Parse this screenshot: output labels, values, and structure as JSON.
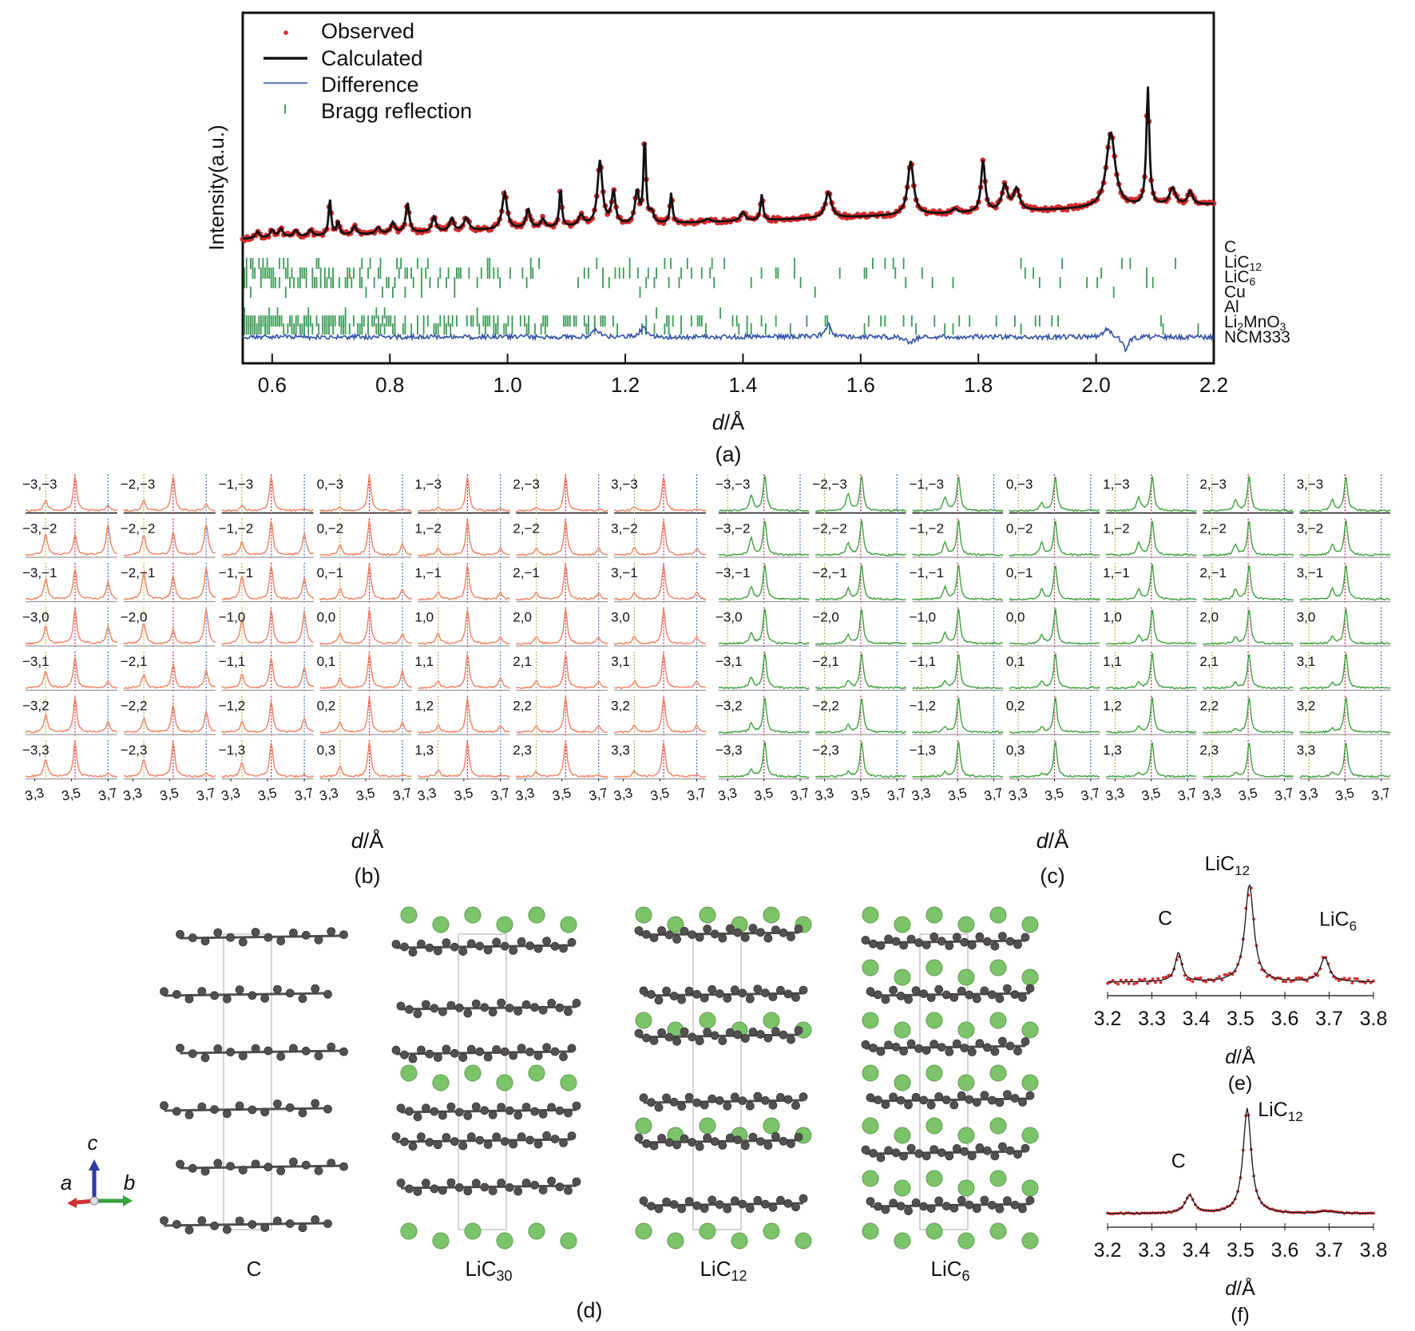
{
  "colors": {
    "observed": "#d42a2a",
    "calculated": "#111111",
    "difference": "#3050a8",
    "bragg": "#3a9a55",
    "panel_b_line": "#f08060",
    "panel_c_line": "#3fa03c",
    "guide_left": "#b8b040",
    "guide_mid": "#c02050",
    "guide_right": "#3a70c8",
    "carbon": "#555050",
    "lithium": "#7cc46a"
  },
  "chart_data": [
    {
      "id": "a",
      "type": "line",
      "panel_label": "(a)",
      "xlabel_italic": "d",
      "xlabel_rest": "/Å",
      "ylabel": "Intensity(a.u.)",
      "xlim": [
        0.55,
        2.2
      ],
      "xticks": [
        0.6,
        0.8,
        1.0,
        1.2,
        1.4,
        1.6,
        1.8,
        2.0,
        2.2
      ],
      "xtick_labels": [
        "0.6",
        "0.8",
        "1.0",
        "1.2",
        "1.4",
        "1.6",
        "1.8",
        "2.0",
        "2.2"
      ],
      "ylim": [
        0,
        1
      ],
      "legend": {
        "position": "top-left",
        "entries": [
          {
            "label": "Observed",
            "marker": "dot",
            "color_key": "observed"
          },
          {
            "label": "Calculated",
            "marker": "thick-line",
            "color_key": "calculated"
          },
          {
            "label": "Difference",
            "marker": "thin-line",
            "color_key": "difference"
          },
          {
            "label": "Bragg reflection",
            "marker": "tick",
            "color_key": "bragg"
          }
        ]
      },
      "baseline": {
        "start": 0.42,
        "end": 0.58
      },
      "peaks": [
        {
          "d": 0.575,
          "h": 0.03,
          "w": 0.004
        },
        {
          "d": 0.6,
          "h": 0.035,
          "w": 0.004
        },
        {
          "d": 0.615,
          "h": 0.04,
          "w": 0.004
        },
        {
          "d": 0.64,
          "h": 0.03,
          "w": 0.004
        },
        {
          "d": 0.665,
          "h": 0.03,
          "w": 0.004
        },
        {
          "d": 0.698,
          "h": 0.17,
          "w": 0.0025
        },
        {
          "d": 0.712,
          "h": 0.06,
          "w": 0.003
        },
        {
          "d": 0.74,
          "h": 0.04,
          "w": 0.004
        },
        {
          "d": 0.78,
          "h": 0.03,
          "w": 0.004
        },
        {
          "d": 0.805,
          "h": 0.05,
          "w": 0.004
        },
        {
          "d": 0.83,
          "h": 0.14,
          "w": 0.0035
        },
        {
          "d": 0.875,
          "h": 0.07,
          "w": 0.004
        },
        {
          "d": 0.905,
          "h": 0.06,
          "w": 0.004
        },
        {
          "d": 0.93,
          "h": 0.06,
          "w": 0.005
        },
        {
          "d": 0.995,
          "h": 0.17,
          "w": 0.005
        },
        {
          "d": 1.035,
          "h": 0.09,
          "w": 0.004
        },
        {
          "d": 1.06,
          "h": 0.04,
          "w": 0.004
        },
        {
          "d": 1.09,
          "h": 0.18,
          "w": 0.0025
        },
        {
          "d": 1.125,
          "h": 0.05,
          "w": 0.005
        },
        {
          "d": 1.157,
          "h": 0.3,
          "w": 0.005
        },
        {
          "d": 1.18,
          "h": 0.15,
          "w": 0.004
        },
        {
          "d": 1.22,
          "h": 0.15,
          "w": 0.004
        },
        {
          "d": 1.233,
          "h": 0.4,
          "w": 0.0025
        },
        {
          "d": 1.245,
          "h": 0.05,
          "w": 0.004
        },
        {
          "d": 1.278,
          "h": 0.14,
          "w": 0.0025
        },
        {
          "d": 1.34,
          "h": 0.015,
          "w": 0.006
        },
        {
          "d": 1.4,
          "h": 0.04,
          "w": 0.005
        },
        {
          "d": 1.432,
          "h": 0.12,
          "w": 0.0025
        },
        {
          "d": 1.545,
          "h": 0.12,
          "w": 0.006
        },
        {
          "d": 1.685,
          "h": 0.25,
          "w": 0.006
        },
        {
          "d": 1.76,
          "h": 0.02,
          "w": 0.005
        },
        {
          "d": 1.808,
          "h": 0.24,
          "w": 0.004
        },
        {
          "d": 1.845,
          "h": 0.12,
          "w": 0.006
        },
        {
          "d": 1.865,
          "h": 0.1,
          "w": 0.006
        },
        {
          "d": 2.025,
          "h": 0.35,
          "w": 0.009
        },
        {
          "d": 2.088,
          "h": 0.55,
          "w": 0.003
        },
        {
          "d": 2.13,
          "h": 0.08,
          "w": 0.006
        },
        {
          "d": 2.16,
          "h": 0.06,
          "w": 0.005
        }
      ],
      "bragg_phases": [
        "C",
        "LiC12",
        "LiC6",
        "Cu",
        "Al",
        "Li2MnO3",
        "NCM333"
      ],
      "phase_labels": [
        {
          "base": "C",
          "sub": ""
        },
        {
          "base": "LiC",
          "sub": "12"
        },
        {
          "base": "LiC",
          "sub": "6"
        },
        {
          "base": "Cu",
          "sub": ""
        },
        {
          "base": "Al",
          "sub": ""
        },
        {
          "base": "Li",
          "sub": "2",
          "mid": "MnO",
          "sub2": "3"
        },
        {
          "base": "NCM333",
          "sub": ""
        }
      ],
      "difference_features": [
        {
          "d": 1.15,
          "amp": -0.02
        },
        {
          "d": 1.23,
          "amp": -0.03
        },
        {
          "d": 1.545,
          "amp": -0.04
        },
        {
          "d": 1.685,
          "amp": 0.02
        },
        {
          "d": 2.02,
          "amp": -0.03
        },
        {
          "d": 2.05,
          "amp": 0.04
        }
      ]
    },
    {
      "id": "b",
      "type": "line",
      "panel_label": "(b)",
      "xlabel_italic": "d",
      "xlabel_rest": "/Å",
      "grid_rows": [
        -3,
        -2,
        -1,
        0,
        1,
        2,
        3
      ],
      "grid_cols": [
        -3,
        -2,
        -1,
        0,
        1,
        2,
        3
      ],
      "cell_labels": [
        [
          "−3,−3",
          "−2,−3",
          "−1,−3",
          "0,−3",
          "1,−3",
          "2,−3",
          "3,−3"
        ],
        [
          "−3,−2",
          "−2,−2",
          "−1,−2",
          "0,−2",
          "1,−2",
          "2,−2",
          "3,−2"
        ],
        [
          "−3,−1",
          "−2,−1",
          "−1,−1",
          "0,−1",
          "1,−1",
          "2,−1",
          "3,−1"
        ],
        [
          "−3,0",
          "−2,0",
          "−1,0",
          "0,0",
          "1,0",
          "2,0",
          "3,0"
        ],
        [
          "−3,1",
          "−2,1",
          "−1,1",
          "0,1",
          "1,1",
          "2,1",
          "3,1"
        ],
        [
          "−3,2",
          "−2,2",
          "−1,2",
          "0,2",
          "1,2",
          "2,2",
          "3,2"
        ],
        [
          "−3,3",
          "−2,3",
          "−1,3",
          "0,3",
          "1,3",
          "2,3",
          "3,3"
        ]
      ],
      "xlim": [
        3.25,
        3.75
      ],
      "xtick_labels": [
        "3,3",
        "3,5",
        "3,7"
      ],
      "xticks": [
        3.3,
        3.5,
        3.7
      ],
      "guide_lines_d": [
        3.36,
        3.52,
        3.7
      ],
      "peak_positions": {
        "C": 3.36,
        "LiC12": 3.52,
        "LiC6": 3.7
      },
      "peak_heights": {
        "C": [
          [
            0.3,
            0.3,
            0.15,
            0.1,
            0.1,
            0.1,
            0.1
          ],
          [
            0.6,
            0.6,
            0.4,
            0.3,
            0.2,
            0.2,
            0.2
          ],
          [
            0.6,
            0.8,
            0.7,
            0.3,
            0.2,
            0.2,
            0.2
          ],
          [
            0.5,
            0.6,
            0.7,
            0.3,
            0.3,
            0.2,
            0.2
          ],
          [
            0.5,
            0.4,
            0.4,
            0.3,
            0.2,
            0.2,
            0.2
          ],
          [
            0.5,
            0.4,
            0.3,
            0.3,
            0.2,
            0.2,
            0.2
          ],
          [
            0.5,
            0.5,
            0.4,
            0.3,
            0.2,
            0.15,
            0.15
          ]
        ],
        "LiC12": [
          [
            1,
            1,
            1,
            1,
            1,
            1,
            1
          ],
          [
            0.6,
            0.7,
            1,
            1,
            1,
            1,
            1
          ],
          [
            0.9,
            0.7,
            1,
            1,
            1,
            1,
            1
          ],
          [
            1,
            0.4,
            1,
            1,
            1,
            1,
            1
          ],
          [
            0.9,
            0.7,
            0.9,
            1,
            1,
            1,
            1
          ],
          [
            1,
            0.8,
            0.9,
            1,
            1,
            1,
            1
          ],
          [
            1,
            1,
            1,
            1,
            1,
            1,
            1
          ]
        ],
        "LiC6": [
          [
            0.15,
            0.2,
            0.05,
            0.05,
            0.05,
            0.05,
            0.05
          ],
          [
            0.9,
            0.9,
            0.6,
            0.3,
            0.2,
            0.2,
            0.2
          ],
          [
            0.5,
            0.9,
            0.6,
            0.3,
            0.2,
            0.2,
            0.2
          ],
          [
            0.5,
            1.0,
            0.9,
            0.3,
            0.2,
            0.2,
            0.2
          ],
          [
            0.2,
            0.5,
            0.6,
            0.5,
            0.3,
            0.2,
            0.2
          ],
          [
            0.3,
            0.6,
            0.4,
            0.3,
            0.2,
            0.2,
            0.2
          ],
          [
            0.1,
            0.1,
            0.05,
            0.05,
            0.05,
            0.05,
            0.05
          ]
        ]
      }
    },
    {
      "id": "c",
      "type": "line",
      "panel_label": "(c)",
      "xlabel_italic": "d",
      "xlabel_rest": "/Å",
      "xlim": [
        3.25,
        3.75
      ],
      "xtick_labels": [
        "3,3",
        "3,5",
        "3,7"
      ],
      "xticks": [
        3.3,
        3.5,
        3.7
      ],
      "guide_lines_d": [
        3.3,
        3.5,
        3.7
      ],
      "peak_positions": {
        "C": 3.43,
        "LiC12": 3.505,
        "LiC6": 3.7
      },
      "peak_heights": {
        "C": [
          [
            0.45,
            0.5,
            0.4,
            0.2,
            0.4,
            0.3,
            0.3
          ],
          [
            0.5,
            0.35,
            0.35,
            0.35,
            0.35,
            0.3,
            0.3
          ],
          [
            0.35,
            0.3,
            0.35,
            0.3,
            0.3,
            0.3,
            0.3
          ],
          [
            0.3,
            0.25,
            0.3,
            0.25,
            0.25,
            0.2,
            0.2
          ],
          [
            0.3,
            0.2,
            0.2,
            0.2,
            0.15,
            0.15,
            0.15
          ],
          [
            0.25,
            0.2,
            0.15,
            0.15,
            0.15,
            0.1,
            0.1
          ],
          [
            0.2,
            0.15,
            0.12,
            0.1,
            0.1,
            0.1,
            0.1
          ]
        ],
        "LiC12": [
          [
            1,
            1,
            1,
            1,
            1,
            1,
            1
          ],
          [
            1,
            1,
            1,
            1,
            1,
            1,
            1
          ],
          [
            1,
            1,
            1,
            1,
            1,
            1,
            1
          ],
          [
            1,
            1,
            1,
            1,
            1,
            1,
            1
          ],
          [
            1,
            1,
            1,
            1,
            1,
            1,
            1
          ],
          [
            1,
            1,
            1,
            1,
            1,
            1,
            1
          ],
          [
            1,
            1,
            1,
            1,
            1,
            1,
            1
          ]
        ],
        "LiC6": [
          [
            0.02,
            0.02,
            0.02,
            0.02,
            0.02,
            0.02,
            0.02
          ],
          [
            0.02,
            0.02,
            0.02,
            0.02,
            0.02,
            0.02,
            0.02
          ],
          [
            0.02,
            0.02,
            0.02,
            0.02,
            0.02,
            0.02,
            0.02
          ],
          [
            0.02,
            0.02,
            0.02,
            0.02,
            0.02,
            0.02,
            0.02
          ],
          [
            0.02,
            0.02,
            0.02,
            0.02,
            0.02,
            0.02,
            0.02
          ],
          [
            0.02,
            0.02,
            0.02,
            0.02,
            0.02,
            0.02,
            0.02
          ],
          [
            0.02,
            0.02,
            0.02,
            0.02,
            0.02,
            0.02,
            0.02
          ]
        ]
      }
    },
    {
      "id": "e",
      "type": "line",
      "panel_label": "(e)",
      "xlabel_italic": "d",
      "xlabel_rest": "/Å",
      "xlim": [
        3.2,
        3.8
      ],
      "xticks": [
        3.2,
        3.3,
        3.4,
        3.5,
        3.6,
        3.7,
        3.8
      ],
      "xtick_labels": [
        "3.2",
        "3.3",
        "3.4",
        "3.5",
        "3.6",
        "3.7",
        "3.8"
      ],
      "peaks": [
        {
          "label": "C",
          "d": 3.36,
          "h": 0.3,
          "w": 0.009
        },
        {
          "label": "LiC12",
          "d": 3.52,
          "h": 1.0,
          "w": 0.012
        },
        {
          "label": "LiC6",
          "d": 3.69,
          "h": 0.25,
          "w": 0.012
        }
      ],
      "annotations": [
        {
          "base": "C",
          "sub": "",
          "d": 3.33
        },
        {
          "base": "LiC",
          "sub": "12",
          "d": 3.47
        },
        {
          "base": "LiC",
          "sub": "6",
          "d": 3.72
        }
      ]
    },
    {
      "id": "f",
      "type": "line",
      "panel_label": "(f)",
      "xlabel_italic": "d",
      "xlabel_rest": "/Å",
      "xlim": [
        3.2,
        3.8
      ],
      "xticks": [
        3.2,
        3.3,
        3.4,
        3.5,
        3.6,
        3.7,
        3.8
      ],
      "xtick_labels": [
        "3.2",
        "3.3",
        "3.4",
        "3.5",
        "3.6",
        "3.7",
        "3.8"
      ],
      "peaks": [
        {
          "label": "C",
          "d": 3.385,
          "h": 0.17,
          "w": 0.012
        },
        {
          "label": "LiC12",
          "d": 3.515,
          "h": 1.0,
          "w": 0.011
        },
        {
          "label": "LiC6",
          "d": 3.695,
          "h": 0.02,
          "w": 0.02
        }
      ],
      "annotations": [
        {
          "base": "C",
          "sub": "",
          "d": 3.36
        },
        {
          "base": "LiC",
          "sub": "12",
          "d": 3.59
        }
      ]
    }
  ],
  "structures": {
    "panel_label": "(d)",
    "axes_labels": {
      "a": "a",
      "b": "b",
      "c": "c"
    },
    "items": [
      {
        "name": "C",
        "base": "C",
        "sub": "",
        "li_layers": []
      },
      {
        "name": "LiC30",
        "base": "LiC",
        "sub": "30",
        "li_layers": [
          0,
          3,
          6
        ]
      },
      {
        "name": "LiC12",
        "base": "LiC",
        "sub": "12",
        "li_layers": [
          0,
          2,
          4,
          6
        ]
      },
      {
        "name": "LiC6",
        "base": "LiC",
        "sub": "6",
        "li_layers": [
          0,
          1,
          2,
          3,
          4,
          5,
          6
        ]
      }
    ]
  }
}
